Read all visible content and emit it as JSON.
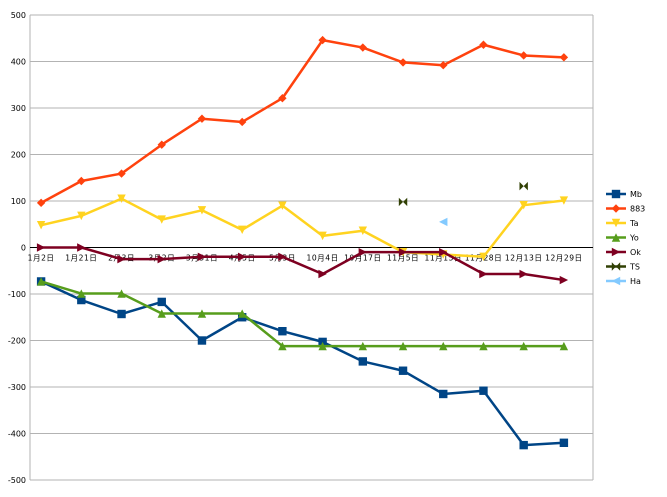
{
  "chart_data": {
    "type": "line",
    "categories": [
      "1月2日",
      "1月21日",
      "2月3日",
      "3月2日",
      "3月31日",
      "4月5日",
      "5月3日",
      "10月4日",
      "10月17日",
      "11月5日",
      "11月15日",
      "11月28日",
      "12月13日",
      "12月29日"
    ],
    "ylim": [
      -500,
      500
    ],
    "yticks": [
      -500,
      -400,
      -300,
      -200,
      -100,
      0,
      100,
      200,
      300,
      400,
      500
    ],
    "grid": true,
    "legend_position": "right",
    "series": [
      {
        "name": "Mb",
        "color": "#004586",
        "marker": "square",
        "values": [
          -73,
          -113,
          -143,
          -117,
          -200,
          -150,
          -180,
          -203,
          -245,
          -265,
          -315,
          -308,
          -425,
          -420
        ]
      },
      {
        "name": "883",
        "color": "#ff420e",
        "marker": "diamond",
        "values": [
          96,
          143,
          159,
          221,
          277,
          270,
          321,
          446,
          430,
          398,
          392,
          436,
          413,
          409
        ]
      },
      {
        "name": "Ta",
        "color": "#ffd320",
        "marker": "triangle-down",
        "values": [
          48,
          68,
          105,
          60,
          80,
          38,
          90,
          25,
          36,
          -10,
          -15,
          -20,
          91,
          101
        ]
      },
      {
        "name": "Yo",
        "color": "#579d1c",
        "marker": "triangle-up",
        "values": [
          -73,
          -99,
          -99,
          -142,
          -142,
          -142,
          -212,
          -212,
          -212,
          -212,
          -212,
          -212,
          -212,
          -212
        ]
      },
      {
        "name": "Ok",
        "color": "#7e0021",
        "marker": "triangle-right",
        "values": [
          0,
          0,
          -25,
          -25,
          -20,
          -20,
          -20,
          -57,
          -10,
          -10,
          -10,
          -57,
          -57,
          -70
        ]
      },
      {
        "name": "TS",
        "color": "#314004",
        "marker": "bowtie",
        "values": [
          null,
          null,
          null,
          null,
          null,
          null,
          null,
          null,
          null,
          98,
          null,
          null,
          132,
          null
        ]
      },
      {
        "name": "Ha",
        "color": "#83caff",
        "marker": "triangle-left",
        "values": [
          null,
          null,
          null,
          null,
          null,
          null,
          null,
          null,
          null,
          null,
          55,
          null,
          null,
          null
        ]
      }
    ]
  }
}
